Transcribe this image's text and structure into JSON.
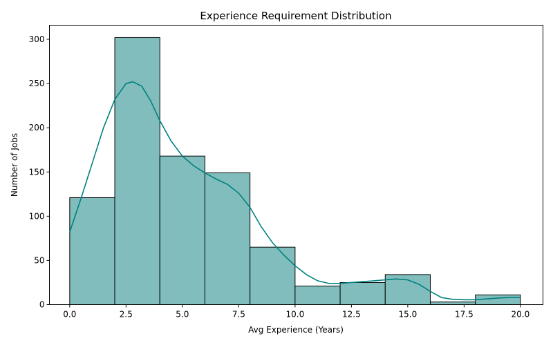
{
  "chart_data": {
    "type": "bar",
    "subtype": "histogram",
    "title": "Experience Requirement Distribution",
    "xlabel": "Avg Experience (Years)",
    "ylabel": "Number of Jobs",
    "xlim": [
      -0.9,
      21
    ],
    "ylim": [
      0,
      316
    ],
    "xticks": [
      0.0,
      2.5,
      5.0,
      7.5,
      10.0,
      12.5,
      15.0,
      17.5,
      20.0
    ],
    "xtick_labels": [
      "0.0",
      "2.5",
      "5.0",
      "7.5",
      "10.0",
      "12.5",
      "15.0",
      "17.5",
      "20.0"
    ],
    "yticks": [
      0,
      50,
      100,
      150,
      200,
      250,
      300
    ],
    "ytick_labels": [
      "0",
      "50",
      "100",
      "150",
      "200",
      "250",
      "300"
    ],
    "bins": [
      {
        "x0": 0,
        "x1": 2,
        "count": 121
      },
      {
        "x0": 2,
        "x1": 4,
        "count": 302
      },
      {
        "x0": 4,
        "x1": 6,
        "count": 168
      },
      {
        "x0": 6,
        "x1": 8,
        "count": 149
      },
      {
        "x0": 8,
        "x1": 10,
        "count": 65
      },
      {
        "x0": 10,
        "x1": 12,
        "count": 21
      },
      {
        "x0": 12,
        "x1": 14,
        "count": 25
      },
      {
        "x0": 14,
        "x1": 16,
        "count": 34
      },
      {
        "x0": 16,
        "x1": 18,
        "count": 3
      },
      {
        "x0": 18,
        "x1": 20,
        "count": 11
      }
    ],
    "kde": {
      "x": [
        0,
        0.5,
        1,
        1.5,
        2,
        2.5,
        2.8,
        3.2,
        3.6,
        4,
        4.5,
        5,
        5.5,
        6,
        6.5,
        7,
        7.5,
        8,
        8.5,
        9,
        9.5,
        10,
        10.5,
        11,
        11.5,
        12,
        12.5,
        13,
        13.5,
        14,
        14.5,
        15,
        15.5,
        16,
        16.5,
        17,
        17.5,
        18,
        18.5,
        19,
        19.5,
        20
      ],
      "y": [
        82,
        120,
        160,
        200,
        232,
        250,
        252,
        247,
        230,
        208,
        185,
        168,
        157,
        149,
        142,
        136,
        126,
        110,
        88,
        70,
        56,
        44,
        34,
        27,
        24,
        24,
        25,
        26,
        27,
        28,
        29,
        28,
        23,
        15,
        8,
        6,
        5.5,
        5.5,
        6.5,
        7.5,
        8,
        8
      ]
    },
    "bar_fill": "#80bdbc",
    "bar_edge": "#000000",
    "kde_color": "#008080",
    "grid": false,
    "legend": "none"
  }
}
